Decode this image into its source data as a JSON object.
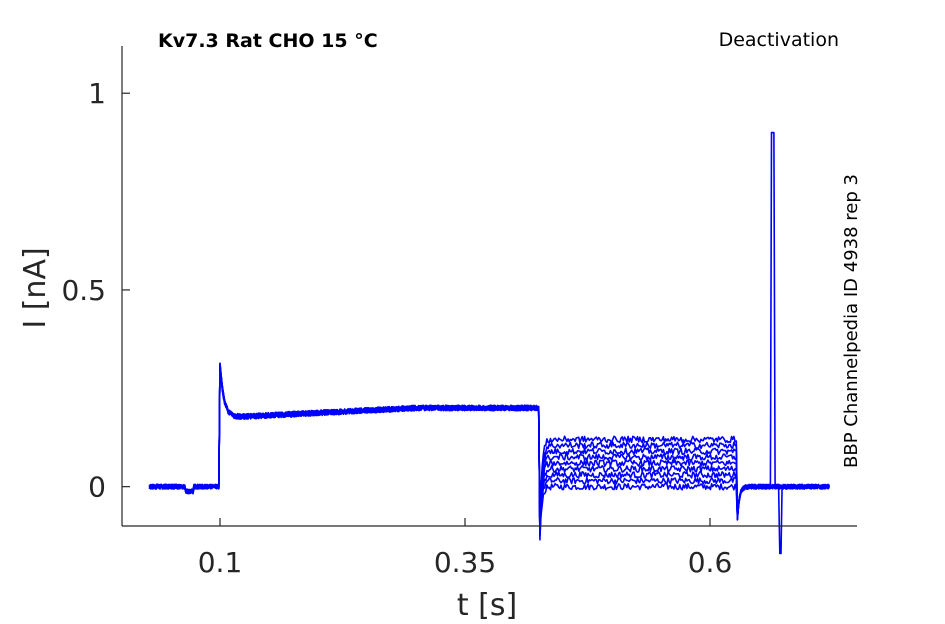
{
  "chart_data": {
    "type": "line",
    "title": "Kv7.3  Rat  CHO  15 °C",
    "subtitle": "Deactivation",
    "side_label": "BBP Channelpedia ID 4938 rep 3",
    "xlabel": "t [s]",
    "ylabel": "I [nA]",
    "xlim": [
      0.0,
      0.75
    ],
    "ylim": [
      -0.1,
      1.12
    ],
    "xticks": [
      0.1,
      0.35,
      0.6
    ],
    "xtick_labels": [
      "0.1",
      "0.35",
      "0.6"
    ],
    "yticks": [
      0,
      0.5,
      1
    ],
    "ytick_labels": [
      "0",
      "0.5",
      "1"
    ],
    "grid": false,
    "line_color": "#0000ff",
    "protocol": {
      "start": 0.028,
      "step_on": 0.1,
      "step_off": 0.426,
      "tail_off": 0.627,
      "end": 0.722,
      "baseline": 0.0,
      "activation_peak": 0.31,
      "activation_plateau_start": 0.175,
      "activation_plateau_end": 0.2,
      "tail_levels": [
        0.0,
        0.015,
        0.03,
        0.045,
        0.06,
        0.075,
        0.09,
        0.105,
        0.12
      ],
      "tail_undershoot": -0.16,
      "artifact_time": 0.664,
      "artifact_peak": 0.9,
      "artifact_trough": -0.17
    },
    "series_count": 9
  }
}
